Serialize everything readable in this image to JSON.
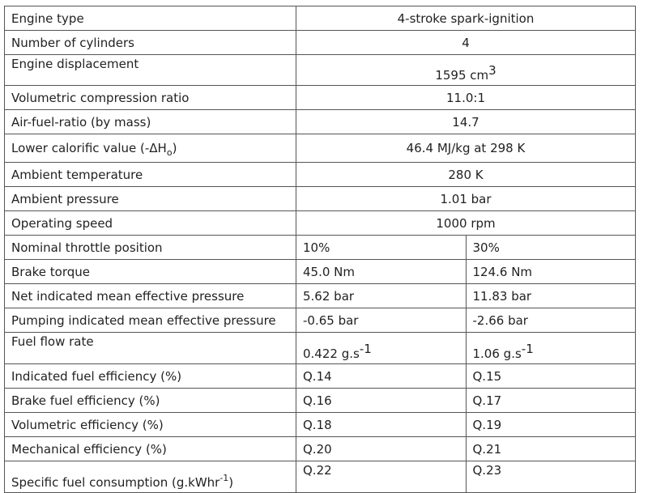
{
  "rows": [
    {
      "label": "Engine type",
      "value": "4-stroke spark-ignition"
    },
    {
      "label": "Number of cylinders",
      "value": "4"
    },
    {
      "label": "Engine displacement",
      "value": "1595 cm",
      "value_sup": "3"
    },
    {
      "label": "Volumetric compression ratio",
      "value": "11.0:1"
    },
    {
      "label": "Air-fuel-ratio (by mass)",
      "value": "14.7"
    },
    {
      "label": "Lower calorific value (-ΔH",
      "label_sub": "o",
      "label_after": ")",
      "value": "46.4 MJ/kg at 298 K"
    },
    {
      "label": "Ambient temperature",
      "value": "280 K"
    },
    {
      "label": "Ambient pressure",
      "value": "1.01 bar"
    },
    {
      "label": "Operating speed",
      "value": "1000 rpm"
    }
  ],
  "split_rows": [
    {
      "label": "Nominal throttle position",
      "v1": "10%",
      "v2": "30%"
    },
    {
      "label": "Brake torque",
      "v1": "45.0 Nm",
      "v2": "124.6 Nm"
    },
    {
      "label": "Net indicated mean effective pressure",
      "v1": "5.62 bar",
      "v2": "11.83 bar"
    },
    {
      "label": "Pumping indicated mean effective pressure",
      "v1": "-0.65 bar",
      "v2": "-2.66 bar"
    },
    {
      "label": "Fuel flow rate",
      "v1": "0.422 g.s",
      "v1_sup": "-1",
      "v2": "1.06 g.s",
      "v2_sup": "-1"
    },
    {
      "label": "Indicated fuel efficiency (%)",
      "v1": "Q.14",
      "v2": "Q.15"
    },
    {
      "label": "Brake fuel efficiency (%)",
      "v1": "Q.16",
      "v2": "Q.17"
    },
    {
      "label": "Volumetric efficiency (%)",
      "v1": "Q.18",
      "v2": "Q.19"
    },
    {
      "label": "Mechanical efficiency (%)",
      "v1": "Q.20",
      "v2": "Q.21"
    },
    {
      "label": "Specific fuel consumption (g.kWhr",
      "label_sup": "-1",
      "label_after": ")",
      "v1": "Q.22",
      "v2": "Q.23"
    }
  ]
}
